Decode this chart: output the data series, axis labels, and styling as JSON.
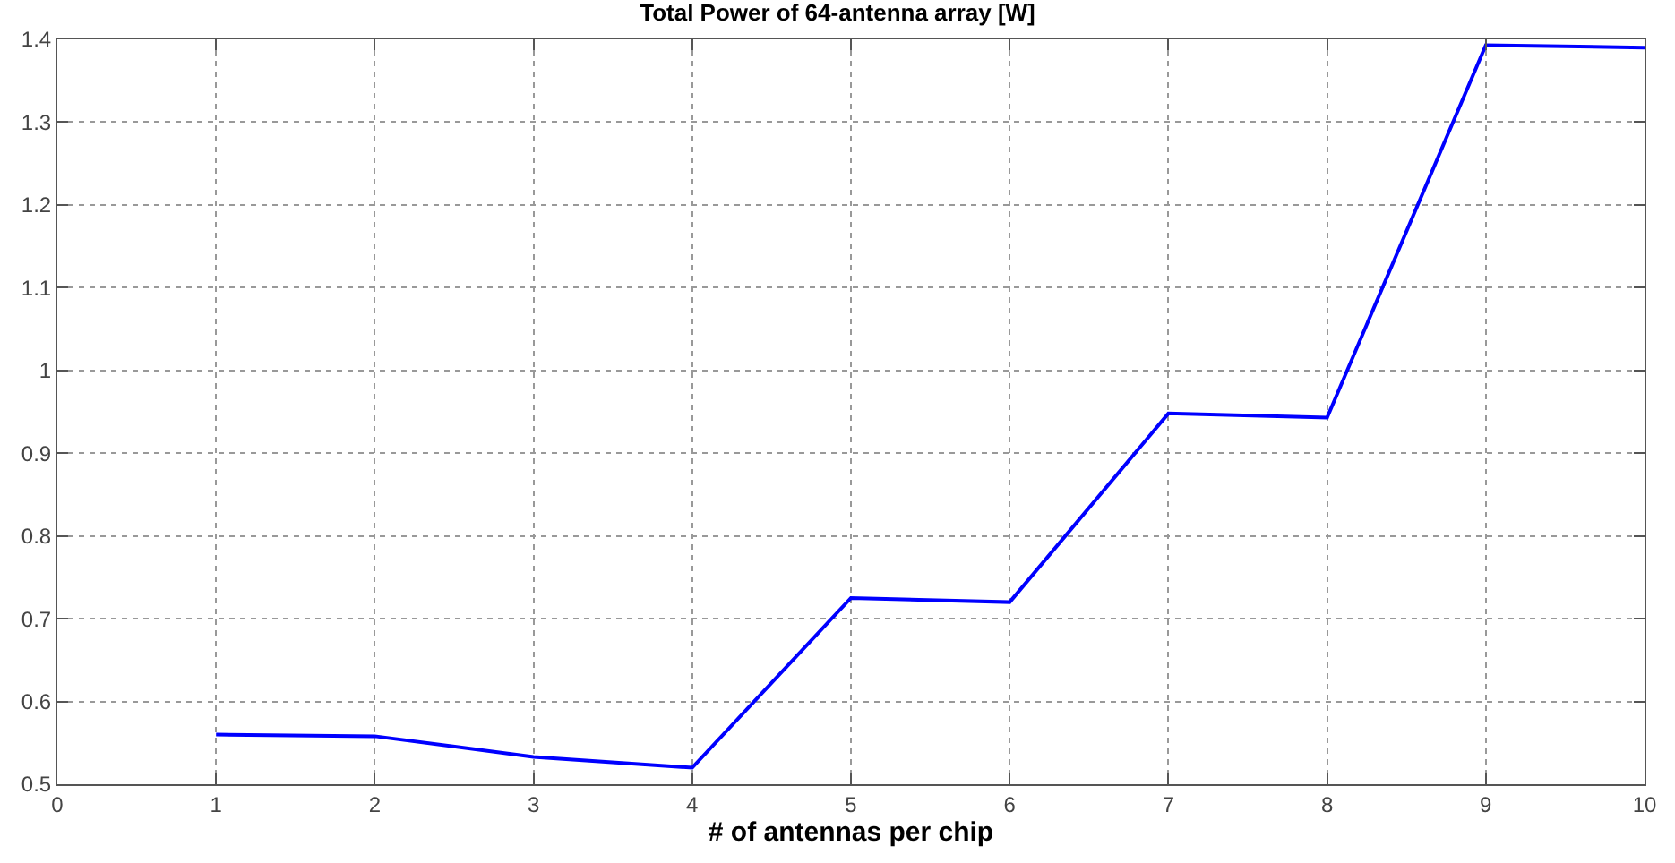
{
  "chart_data": {
    "type": "line",
    "title": "Total Power of 64-antenna array [W]",
    "xlabel": "# of antennas per chip",
    "x": [
      1,
      2,
      3,
      4,
      5,
      6,
      7,
      8,
      9,
      10
    ],
    "series": [
      {
        "color": "#0000ff",
        "values": [
          0.56,
          0.558,
          0.533,
          0.52,
          0.725,
          0.72,
          0.948,
          0.943,
          1.393,
          1.39
        ]
      }
    ],
    "xlim": [
      0,
      10
    ],
    "xticks": [
      0,
      1,
      2,
      3,
      4,
      5,
      6,
      7,
      8,
      9,
      10
    ],
    "ylim": [
      0.5,
      1.4
    ],
    "yticks": [
      0.5,
      0.6,
      0.7,
      0.8,
      0.9,
      1,
      1.1,
      1.2,
      1.3,
      1.4
    ],
    "grid": true,
    "marker": "none",
    "line_style": "solid"
  }
}
